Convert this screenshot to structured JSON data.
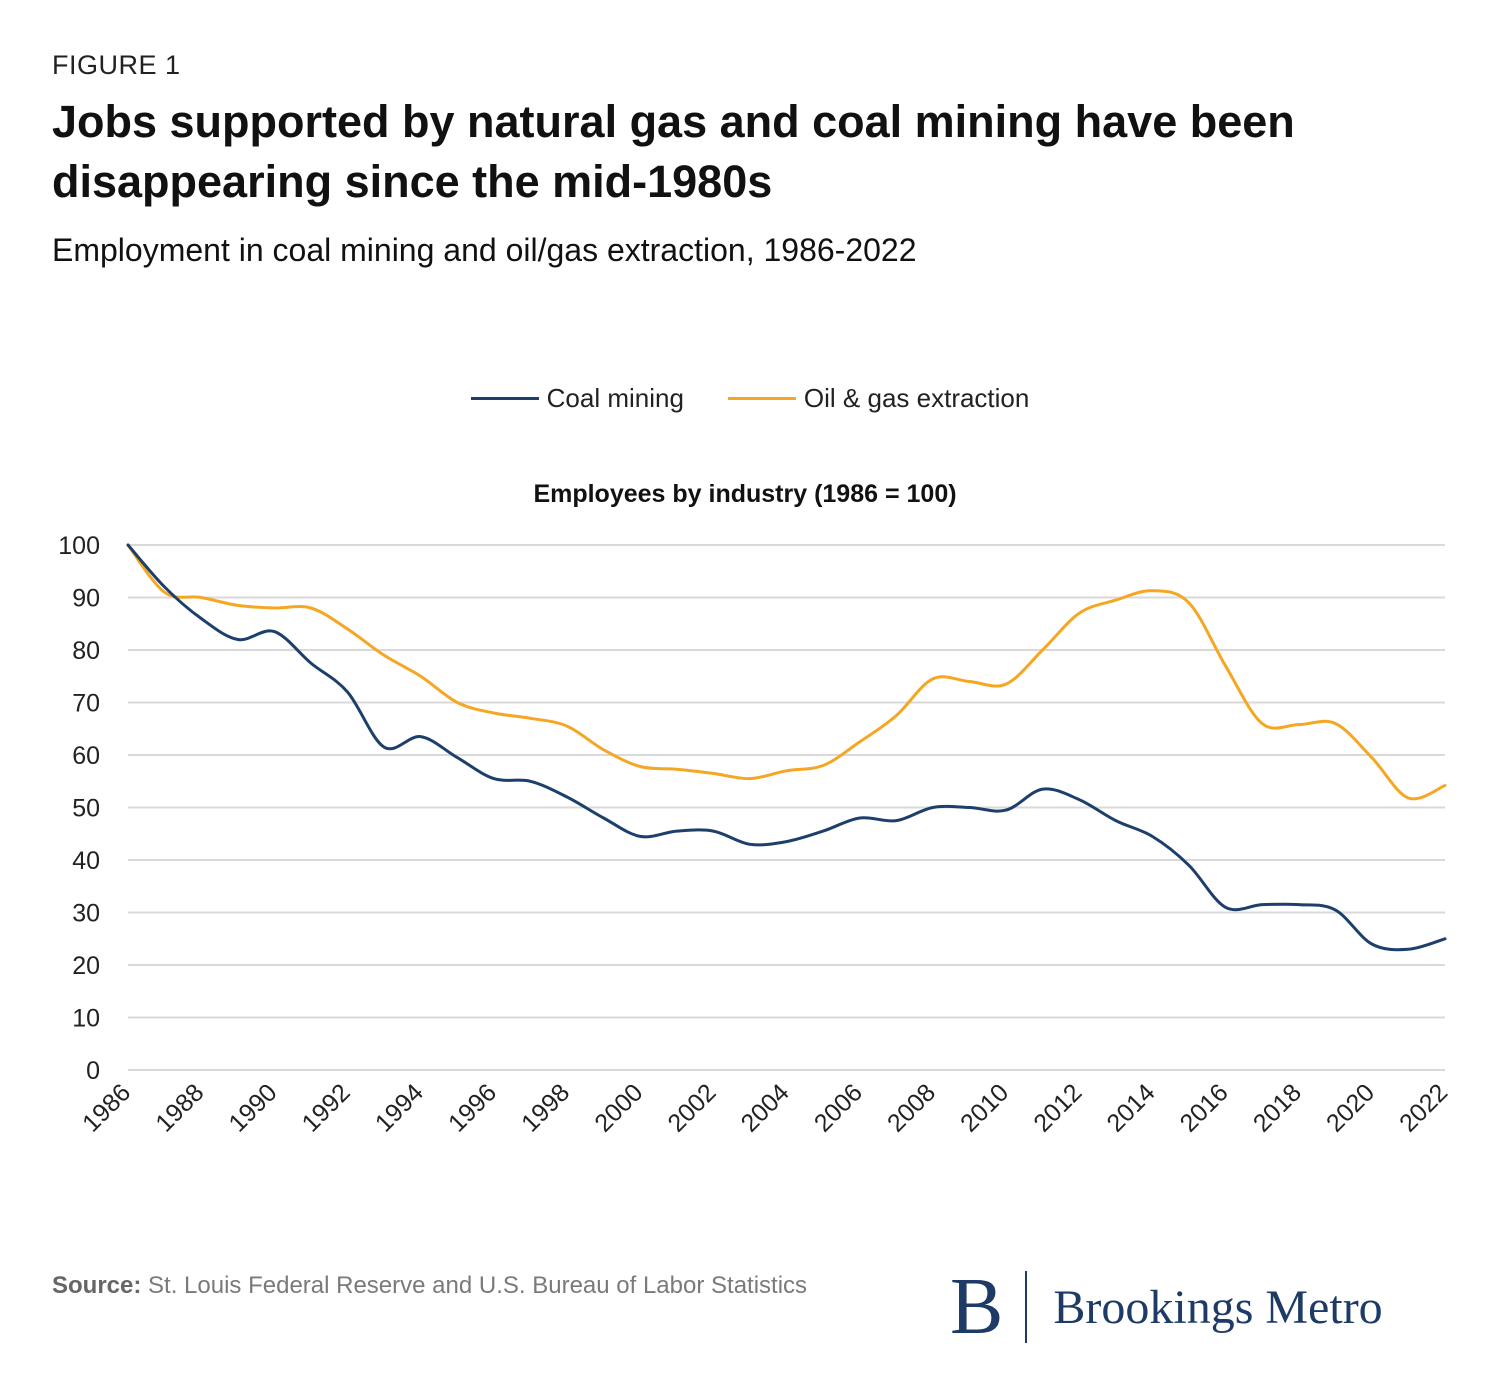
{
  "header": {
    "figure_label": "FIGURE 1",
    "title": "Jobs supported by natural gas and coal mining have been disappearing since the mid-1980s",
    "subtitle": "Employment in coal mining and oil/gas extraction, 1986-2022"
  },
  "footer": {
    "source_label": "Source:",
    "source_text": "St. Louis Federal Reserve and U.S. Bureau of Labor Statistics",
    "logo_mark": "B",
    "logo_text": "Brookings Metro"
  },
  "colors": {
    "coal": "#1c3f6b",
    "oil": "#f5a623",
    "grid": "#d9d9d9"
  },
  "chart_data": {
    "type": "line",
    "title": "Employees by industry (1986 = 100)",
    "xlabel": "",
    "ylabel": "",
    "ylim": [
      0,
      100
    ],
    "yticks": [
      0,
      10,
      20,
      30,
      40,
      50,
      60,
      70,
      80,
      90,
      100
    ],
    "xlim": [
      1986,
      2022
    ],
    "xticks": [
      1986,
      1988,
      1990,
      1992,
      1994,
      1996,
      1998,
      2000,
      2002,
      2004,
      2006,
      2008,
      2010,
      2012,
      2014,
      2016,
      2018,
      2020,
      2022
    ],
    "grid": true,
    "legend_position": "top-center",
    "x": [
      1986,
      1987,
      1988,
      1989,
      1990,
      1991,
      1992,
      1993,
      1994,
      1995,
      1996,
      1997,
      1998,
      1999,
      2000,
      2001,
      2002,
      2003,
      2004,
      2005,
      2006,
      2007,
      2008,
      2009,
      2010,
      2011,
      2012,
      2013,
      2014,
      2015,
      2016,
      2017,
      2018,
      2019,
      2020,
      2021,
      2022
    ],
    "series": [
      {
        "name": "Coal mining",
        "values": [
          100,
          92,
          86,
          82,
          83.5,
          77.5,
          72,
          61.5,
          63.5,
          59.5,
          55.5,
          55,
          52,
          48,
          44.5,
          45.5,
          45.5,
          43,
          43.5,
          45.5,
          48,
          47.5,
          50,
          50,
          49.5,
          53.5,
          51.5,
          47.5,
          44.5,
          39,
          31,
          31.5,
          31.5,
          30.5,
          24,
          23,
          25
        ]
      },
      {
        "name": "Oil & gas extraction",
        "values": [
          100,
          91,
          90,
          88.5,
          88,
          88,
          84,
          79,
          75,
          70,
          68,
          67,
          65.5,
          61,
          57.8,
          57.3,
          56.5,
          55.5,
          57,
          58,
          62.5,
          67.5,
          74.5,
          74,
          73.5,
          80,
          87,
          89.5,
          91.3,
          89,
          77,
          66,
          65.8,
          66,
          59.5,
          51.8,
          54.2
        ]
      }
    ]
  }
}
